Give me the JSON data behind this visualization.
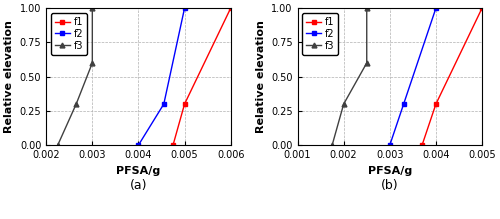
{
  "subplot_a": {
    "title": "(a)",
    "xlabel": "PFSA/g",
    "ylabel": "Relative elevation",
    "xlim": [
      0.002,
      0.006
    ],
    "ylim": [
      0.0,
      1.0
    ],
    "xticks": [
      0.002,
      0.003,
      0.004,
      0.005,
      0.006
    ],
    "yticks": [
      0.0,
      0.25,
      0.5,
      0.75,
      1.0
    ],
    "f1": {
      "x": [
        0.00475,
        0.005,
        0.006
      ],
      "y": [
        0.0,
        0.3,
        1.0
      ],
      "color": "#ff0000",
      "marker": "s"
    },
    "f2": {
      "x": [
        0.004,
        0.00455,
        0.005
      ],
      "y": [
        0.0,
        0.3,
        1.0
      ],
      "color": "#0000ff",
      "marker": "s"
    },
    "f3": {
      "x": [
        0.00225,
        0.00265,
        0.003,
        0.003
      ],
      "y": [
        0.0,
        0.3,
        0.6,
        1.0
      ],
      "color": "#404040",
      "marker": "^"
    }
  },
  "subplot_b": {
    "title": "(b)",
    "xlabel": "PFSA/g",
    "ylabel": "Relative elevation",
    "xlim": [
      0.001,
      0.005
    ],
    "ylim": [
      0.0,
      1.0
    ],
    "xticks": [
      0.001,
      0.002,
      0.003,
      0.004,
      0.005
    ],
    "yticks": [
      0.0,
      0.25,
      0.5,
      0.75,
      1.0
    ],
    "f1": {
      "x": [
        0.0037,
        0.004,
        0.005
      ],
      "y": [
        0.0,
        0.3,
        1.0
      ],
      "color": "#ff0000",
      "marker": "s"
    },
    "f2": {
      "x": [
        0.003,
        0.0033,
        0.004
      ],
      "y": [
        0.0,
        0.3,
        1.0
      ],
      "color": "#0000ff",
      "marker": "s"
    },
    "f3": {
      "x": [
        0.00175,
        0.002,
        0.0025,
        0.0025
      ],
      "y": [
        0.0,
        0.3,
        0.6,
        1.0
      ],
      "color": "#404040",
      "marker": "^"
    }
  },
  "background_color": "#ffffff",
  "grid_color": "#b0b0b0",
  "label_fontsize": 8,
  "tick_fontsize": 7,
  "legend_fontsize": 7,
  "linewidth": 1.0,
  "markersize": 3.5
}
